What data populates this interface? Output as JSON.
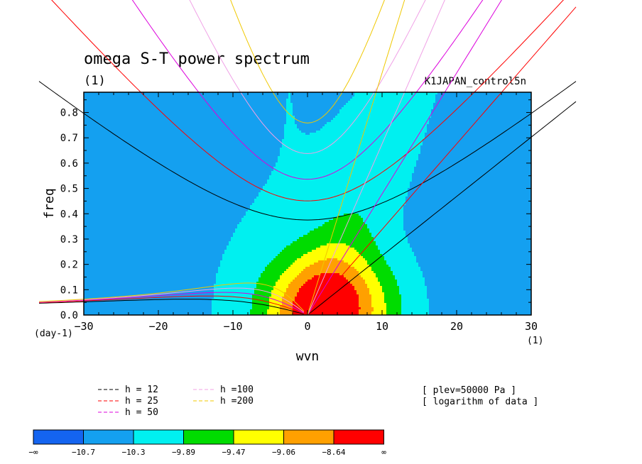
{
  "chart_data": {
    "type": "heatmap",
    "title": "omega S-T power spectrum",
    "subtitle_units": "(1)",
    "run_name": "K1JAPAN_control5n",
    "xlabel": "wvn",
    "ylabel": "freq",
    "x_unit_label": "(1)",
    "y_unit_label": "(day-1)",
    "xlim": [
      -30,
      30
    ],
    "ylim": [
      0,
      0.88
    ],
    "x_ticks": [
      -30,
      -20,
      -10,
      0,
      10,
      20,
      30
    ],
    "x_tick_labels": [
      "−30",
      "−20",
      "−10",
      "0",
      "10",
      "20",
      "30"
    ],
    "y_ticks": [
      0,
      0.1,
      0.2,
      0.3,
      0.4,
      0.5,
      0.6,
      0.7,
      0.8
    ],
    "y_tick_labels": [
      "0.0",
      "0.1",
      "0.2",
      "0.3",
      "0.4",
      "0.5",
      "0.6",
      "0.7",
      "0.8"
    ],
    "color_levels": [
      "−∞",
      "−10.7",
      "−10.3",
      "−9.89",
      "−9.47",
      "−9.06",
      "−8.64",
      "∞"
    ],
    "color_bins": [
      "#1464f0",
      "#14a0f0",
      "#00f0f0",
      "#00dc00",
      "#ffff00",
      "#ffa000",
      "#ff0000"
    ],
    "equivalent_depth_curves": [
      {
        "h": 12,
        "label": "h = 12",
        "color": "#000000"
      },
      {
        "h": 25,
        "label": "h = 25",
        "color": "#ff0000"
      },
      {
        "h": 50,
        "label": "h = 50",
        "color": "#dc00dc"
      },
      {
        "h": 100,
        "label": "h =100",
        "color": "#f0a0e6"
      },
      {
        "h": 200,
        "label": "h =200",
        "color": "#f0c800"
      }
    ],
    "annotations": [
      "[ plev=50000 Pa ]",
      "[ logarithm of data ]"
    ]
  }
}
